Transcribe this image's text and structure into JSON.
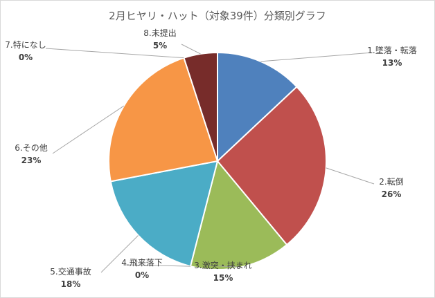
{
  "chart_data": {
    "type": "pie",
    "title": "2月ヒヤリ・ハット（対象39件）分類別グラフ",
    "categories": [
      "1.墜落・転落",
      "2.転倒",
      "3.激突・挟まれ",
      "4.飛来落下",
      "5.交通事故",
      "6.その他",
      "7.特になし",
      "8.未提出"
    ],
    "values": [
      13,
      26,
      15,
      0,
      18,
      23,
      0,
      5
    ],
    "data_labels": [
      "13%",
      "26%",
      "15%",
      "0%",
      "18%",
      "23%",
      "0%",
      "5%"
    ],
    "colors": [
      "#4f81bd",
      "#c0504d",
      "#9bbb59",
      "#8064a2",
      "#4bacc6",
      "#f79646",
      "#2c4d75",
      "#772c2a"
    ],
    "legend": "none",
    "start_angle_deg": 0,
    "direction": "clockwise"
  }
}
